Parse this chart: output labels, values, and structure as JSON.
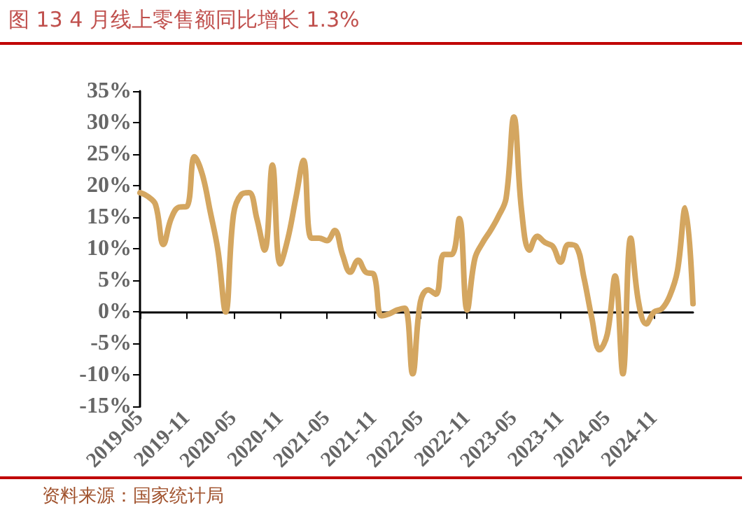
{
  "chart_data": {
    "type": "line",
    "title": "图 13 4 月线上零售额同比增长 1.3%",
    "annotations": [
      "资料来源：国家统计局"
    ],
    "categories": [
      "2019-05",
      null,
      null,
      null,
      null,
      null,
      "2019-11",
      null,
      null,
      null,
      null,
      null,
      "2020-05",
      null,
      null,
      null,
      null,
      null,
      "2020-11",
      null,
      null,
      null,
      null,
      null,
      "2021-05",
      null,
      null,
      null,
      null,
      null,
      "2021-11",
      null,
      null,
      null,
      null,
      null,
      "2022-05",
      null,
      null,
      null,
      null,
      null,
      "2022-11",
      null,
      null,
      null,
      null,
      null,
      "2023-05",
      null,
      null,
      null,
      null,
      null,
      "2023-11",
      null,
      null,
      null,
      null,
      null,
      "2024-05",
      null,
      null,
      null,
      null,
      null,
      "2024-11",
      null,
      null,
      null,
      null,
      null
    ],
    "series": [
      {
        "color": "#d4a660",
        "values": [
          18.9,
          18.3,
          17,
          10.7,
          14.8,
          16.6,
          16.7,
          24.6,
          21.8,
          16,
          9.8,
          0,
          15.4,
          18.6,
          18.9,
          14.8,
          9.8,
          23.3,
          7.6,
          11.7,
          18,
          24,
          11.7,
          11.7,
          11.3,
          12.9,
          9.1,
          6.3,
          8.2,
          6.3,
          6,
          -0.6,
          -0.3,
          0.3,
          0.6,
          -9.8,
          1.6,
          3.5,
          2.8,
          9.1,
          9.1,
          14.8,
          0.3,
          8.5,
          11,
          12.9,
          15.1,
          18,
          30.9,
          16,
          9.8,
          12,
          11,
          10.4,
          7.9,
          10.7,
          10.4,
          5.4,
          -0.9,
          -6,
          -3.5,
          5.7,
          -9.8,
          11.7,
          1.6,
          -1.9,
          0,
          0.5,
          2.5,
          6.5,
          16.5,
          1.3
        ]
      }
    ],
    "ylim": [
      -15,
      35
    ],
    "yticks": [
      {
        "value": -15,
        "label": "-15%"
      },
      {
        "value": -10,
        "label": "-10%"
      },
      {
        "value": -5,
        "label": "-5%"
      },
      {
        "value": 0,
        "label": "0%"
      },
      {
        "value": 5,
        "label": "5%"
      },
      {
        "value": 10,
        "label": "10%"
      },
      {
        "value": 15,
        "label": "15%"
      },
      {
        "value": 20,
        "label": "20%"
      },
      {
        "value": 25,
        "label": "25%"
      },
      {
        "value": 30,
        "label": "30%"
      },
      {
        "value": 35,
        "label": "35%"
      }
    ],
    "marker": "none",
    "line_style": "solid"
  }
}
